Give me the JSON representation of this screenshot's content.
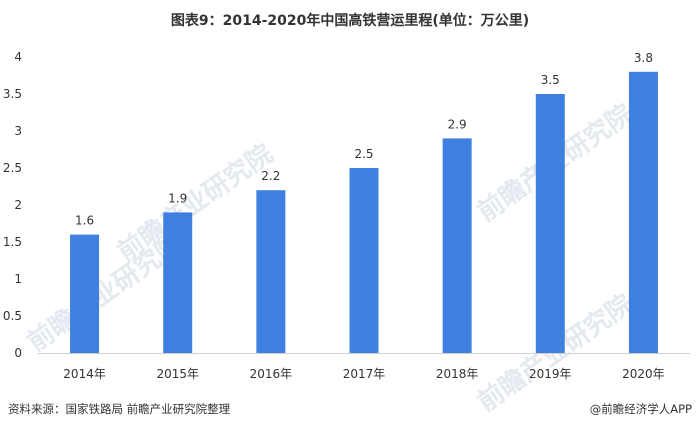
{
  "chart_data": {
    "type": "bar",
    "title": "图表9：2014-2020年中国高铁营运里程(单位：万公里)",
    "categories": [
      "2014年",
      "2015年",
      "2016年",
      "2017年",
      "2018年",
      "2019年",
      "2020年"
    ],
    "values": [
      1.6,
      1.9,
      2.2,
      2.5,
      2.9,
      3.5,
      3.8
    ],
    "ylim": [
      0,
      4
    ],
    "yticks": [
      "0",
      "0.5",
      "1",
      "1.5",
      "2",
      "2.5",
      "3",
      "3.5",
      "4"
    ],
    "data_labels": [
      "1.6",
      "1.9",
      "2.2",
      "2.5",
      "2.9",
      "3.5",
      "3.8"
    ],
    "bar_color": "#3f7fe0",
    "grid": false,
    "legend": "none"
  },
  "footer": {
    "source": "资料来源：国家铁路局 前瞻产业研究院整理",
    "brand": "@前瞻经济学人APP"
  },
  "watermark": {
    "text": "前瞻产业研究院"
  }
}
